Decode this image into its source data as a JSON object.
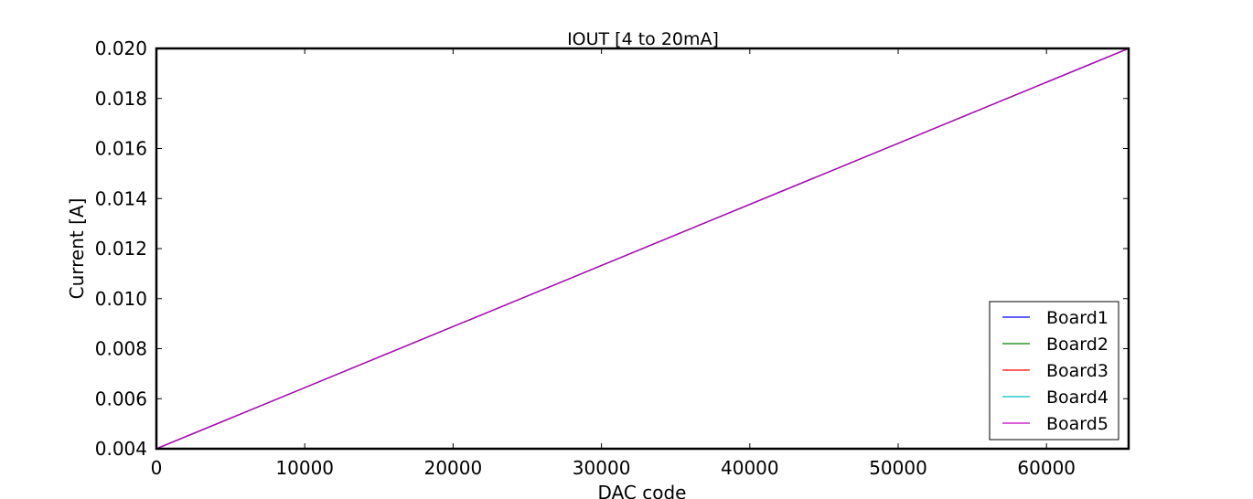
{
  "chart_data": {
    "type": "line",
    "title": "IOUT [4 to 20mA]",
    "xlabel": "DAC code",
    "ylabel": "Current [A]",
    "xlim": [
      0,
      65535
    ],
    "ylim": [
      0.004,
      0.02
    ],
    "xticks": [
      0,
      10000,
      20000,
      30000,
      40000,
      50000,
      60000
    ],
    "xtick_labels": [
      "0",
      "10000",
      "20000",
      "30000",
      "40000",
      "50000",
      "60000"
    ],
    "yticks": [
      0.004,
      0.006,
      0.008,
      0.01,
      0.012,
      0.014,
      0.016,
      0.018,
      0.02
    ],
    "ytick_labels": [
      "0.004",
      "0.006",
      "0.008",
      "0.010",
      "0.012",
      "0.014",
      "0.016",
      "0.018",
      "0.020"
    ],
    "grid": false,
    "legend_position": "lower-right",
    "series": [
      {
        "name": "Board1",
        "color": "#0000ff",
        "x": [
          0,
          65535
        ],
        "y": [
          0.004,
          0.02
        ]
      },
      {
        "name": "Board2",
        "color": "#008000",
        "x": [
          0,
          65535
        ],
        "y": [
          0.004,
          0.02
        ]
      },
      {
        "name": "Board3",
        "color": "#ff0000",
        "x": [
          0,
          65535
        ],
        "y": [
          0.004,
          0.02
        ]
      },
      {
        "name": "Board4",
        "color": "#00bfbf",
        "x": [
          0,
          65535
        ],
        "y": [
          0.004,
          0.02
        ]
      },
      {
        "name": "Board5",
        "color": "#bf00bf",
        "x": [
          0,
          65535
        ],
        "y": [
          0.004,
          0.02
        ]
      }
    ]
  }
}
